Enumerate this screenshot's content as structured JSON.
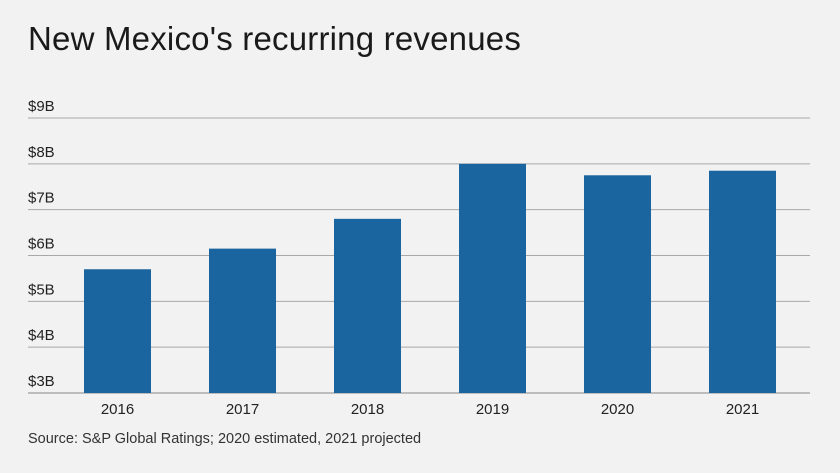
{
  "title": "New Mexico's recurring revenues",
  "source": "Source: S&P Global Ratings; 2020 estimated, 2021 projected",
  "colors": {
    "bar": "#1a64a0",
    "grid": "#a8a8a8",
    "axis": "#888888"
  },
  "chart_data": {
    "type": "bar",
    "title": "New Mexico's recurring revenues",
    "categories": [
      "2016",
      "2017",
      "2018",
      "2019",
      "2020",
      "2021"
    ],
    "values": [
      5.7,
      6.15,
      6.8,
      8.0,
      7.75,
      7.85
    ],
    "units": "billions of dollars",
    "ylim": [
      3,
      9
    ],
    "yticks": [
      3,
      4,
      5,
      6,
      7,
      8,
      9
    ],
    "ytick_labels": [
      "$3B",
      "$4B",
      "$5B",
      "$6B",
      "$7B",
      "$8B",
      "$9B"
    ],
    "xlabel": "",
    "ylabel": "",
    "grid": true,
    "legend": "none"
  }
}
